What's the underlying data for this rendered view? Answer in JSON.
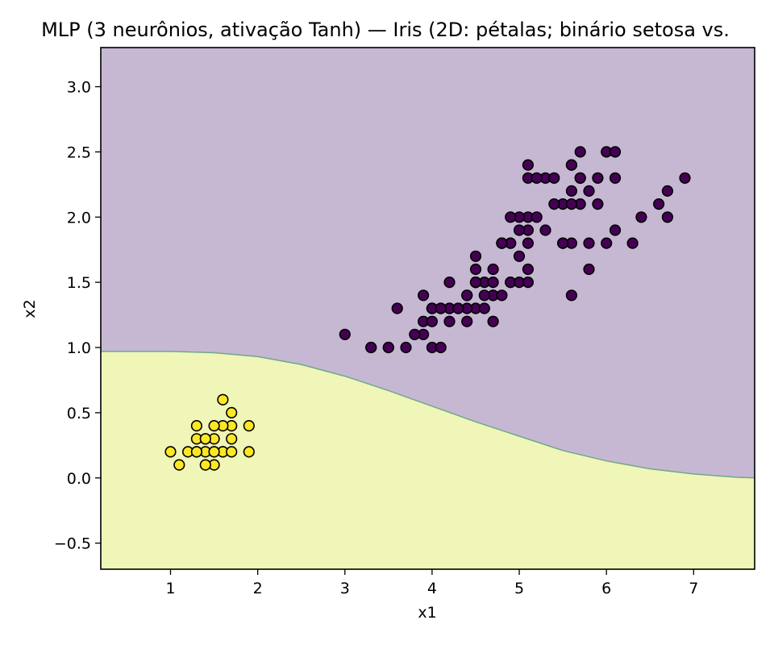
{
  "chart_data": {
    "type": "scatter",
    "title": "MLP (3 neurônios, ativação Tanh) — Iris (2D: pétalas; binário setosa vs.",
    "xlabel": "x1",
    "ylabel": "x2",
    "xlim": [
      0.2,
      7.7
    ],
    "ylim": [
      -0.7,
      3.3
    ],
    "x_ticks": [
      1,
      2,
      3,
      4,
      5,
      6,
      7
    ],
    "y_ticks": [
      -0.5,
      0.0,
      0.5,
      1.0,
      1.5,
      2.0,
      2.5,
      3.0
    ],
    "x_tick_labels": [
      "1",
      "2",
      "3",
      "4",
      "5",
      "6",
      "7"
    ],
    "y_tick_labels": [
      "−0.5",
      "0.0",
      "0.5",
      "1.0",
      "1.5",
      "2.0",
      "2.5",
      "3.0"
    ],
    "grid": false,
    "legend": "none",
    "colors": {
      "region_other": "#c6b8d3",
      "region_setosa": "#f0f5b8",
      "boundary": "#6fa88a",
      "points_other": "#440154",
      "points_setosa": "#fde725",
      "marker_edge": "#000000"
    },
    "decision_boundary": {
      "x": [
        0.2,
        0.5,
        1.0,
        1.5,
        2.0,
        2.5,
        3.0,
        3.5,
        4.0,
        4.5,
        5.0,
        5.5,
        6.0,
        6.5,
        7.0,
        7.5,
        7.7
      ],
      "y": [
        0.97,
        0.97,
        0.97,
        0.96,
        0.93,
        0.87,
        0.78,
        0.67,
        0.55,
        0.43,
        0.32,
        0.21,
        0.13,
        0.07,
        0.03,
        0.005,
        0.0
      ]
    },
    "series": [
      {
        "class": 1,
        "color": "#440154",
        "points": [
          [
            4.7,
            1.4
          ],
          [
            4.5,
            1.5
          ],
          [
            4.9,
            1.5
          ],
          [
            4.0,
            1.3
          ],
          [
            4.6,
            1.5
          ],
          [
            4.5,
            1.3
          ],
          [
            4.7,
            1.6
          ],
          [
            3.3,
            1.0
          ],
          [
            4.6,
            1.3
          ],
          [
            3.9,
            1.4
          ],
          [
            3.5,
            1.0
          ],
          [
            4.2,
            1.5
          ],
          [
            4.0,
            1.0
          ],
          [
            4.7,
            1.4
          ],
          [
            3.6,
            1.3
          ],
          [
            4.4,
            1.4
          ],
          [
            4.5,
            1.5
          ],
          [
            4.1,
            1.0
          ],
          [
            4.5,
            1.5
          ],
          [
            3.9,
            1.1
          ],
          [
            4.8,
            1.8
          ],
          [
            4.0,
            1.3
          ],
          [
            4.9,
            1.5
          ],
          [
            4.7,
            1.2
          ],
          [
            4.3,
            1.3
          ],
          [
            4.4,
            1.4
          ],
          [
            4.8,
            1.4
          ],
          [
            5.0,
            1.7
          ],
          [
            4.5,
            1.5
          ],
          [
            3.5,
            1.0
          ],
          [
            3.8,
            1.1
          ],
          [
            3.7,
            1.0
          ],
          [
            3.9,
            1.2
          ],
          [
            5.1,
            1.6
          ],
          [
            4.5,
            1.5
          ],
          [
            4.5,
            1.6
          ],
          [
            4.7,
            1.5
          ],
          [
            4.4,
            1.3
          ],
          [
            4.1,
            1.3
          ],
          [
            4.0,
            1.3
          ],
          [
            4.4,
            1.2
          ],
          [
            4.6,
            1.4
          ],
          [
            4.0,
            1.2
          ],
          [
            3.3,
            1.0
          ],
          [
            4.2,
            1.3
          ],
          [
            4.2,
            1.2
          ],
          [
            4.2,
            1.3
          ],
          [
            4.3,
            1.3
          ],
          [
            3.0,
            1.1
          ],
          [
            4.1,
            1.3
          ],
          [
            6.0,
            2.5
          ],
          [
            5.1,
            1.9
          ],
          [
            5.9,
            2.1
          ],
          [
            5.6,
            1.8
          ],
          [
            5.8,
            2.2
          ],
          [
            6.6,
            2.1
          ],
          [
            4.5,
            1.7
          ],
          [
            6.3,
            1.8
          ],
          [
            5.8,
            1.8
          ],
          [
            6.1,
            2.5
          ],
          [
            5.1,
            2.0
          ],
          [
            5.3,
            1.9
          ],
          [
            5.5,
            2.1
          ],
          [
            5.0,
            2.0
          ],
          [
            5.1,
            2.4
          ],
          [
            5.3,
            2.3
          ],
          [
            5.5,
            1.8
          ],
          [
            6.7,
            2.2
          ],
          [
            6.9,
            2.3
          ],
          [
            5.0,
            1.5
          ],
          [
            5.7,
            2.3
          ],
          [
            4.9,
            2.0
          ],
          [
            6.7,
            2.0
          ],
          [
            4.9,
            1.8
          ],
          [
            5.7,
            2.1
          ],
          [
            6.0,
            1.8
          ],
          [
            4.8,
            1.8
          ],
          [
            4.9,
            1.8
          ],
          [
            5.6,
            2.1
          ],
          [
            5.8,
            1.6
          ],
          [
            6.1,
            1.9
          ],
          [
            6.4,
            2.0
          ],
          [
            5.6,
            2.2
          ],
          [
            5.1,
            1.5
          ],
          [
            5.6,
            1.4
          ],
          [
            6.1,
            2.3
          ],
          [
            5.6,
            2.4
          ],
          [
            5.5,
            1.8
          ],
          [
            4.8,
            1.8
          ],
          [
            5.4,
            2.1
          ],
          [
            5.6,
            2.4
          ],
          [
            5.1,
            2.3
          ],
          [
            5.9,
            2.3
          ],
          [
            5.7,
            2.5
          ],
          [
            5.2,
            2.3
          ],
          [
            5.0,
            1.9
          ],
          [
            5.2,
            2.0
          ],
          [
            5.4,
            2.3
          ],
          [
            5.1,
            1.8
          ],
          [
            5.7,
            2.3
          ]
        ]
      },
      {
        "class": 0,
        "color": "#fde725",
        "points": [
          [
            1.4,
            0.2
          ],
          [
            1.3,
            0.2
          ],
          [
            1.5,
            0.2
          ],
          [
            1.7,
            0.4
          ],
          [
            1.4,
            0.3
          ],
          [
            1.5,
            0.1
          ],
          [
            1.6,
            0.2
          ],
          [
            1.1,
            0.1
          ],
          [
            1.2,
            0.2
          ],
          [
            1.3,
            0.4
          ],
          [
            1.0,
            0.2
          ],
          [
            1.7,
            0.5
          ],
          [
            1.9,
            0.2
          ],
          [
            1.6,
            0.4
          ],
          [
            1.5,
            0.4
          ],
          [
            1.4,
            0.1
          ],
          [
            1.7,
            0.3
          ],
          [
            1.3,
            0.3
          ],
          [
            1.6,
            0.6
          ],
          [
            1.9,
            0.4
          ],
          [
            1.5,
            0.3
          ],
          [
            1.6,
            0.2
          ],
          [
            1.7,
            0.2
          ],
          [
            1.4,
            0.3
          ],
          [
            1.3,
            0.2
          ],
          [
            1.5,
            0.2
          ]
        ]
      }
    ]
  }
}
